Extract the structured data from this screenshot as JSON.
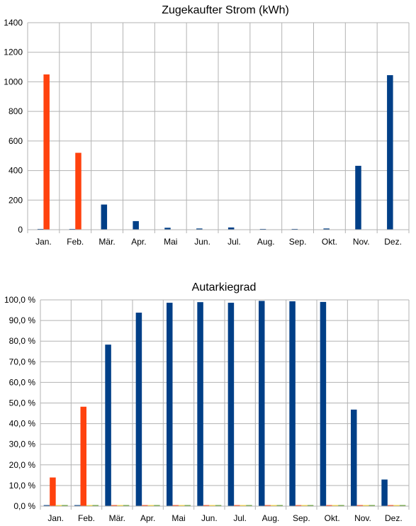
{
  "chart_data": [
    {
      "type": "bar",
      "title": "Zugekaufter Strom (kWh)",
      "categories": [
        "Jan.",
        "Feb.",
        "Mär.",
        "Apr.",
        "Mai",
        "Jun.",
        "Jul.",
        "Aug.",
        "Sep.",
        "Okt.",
        "Nov.",
        "Dez."
      ],
      "ylim": [
        0,
        1400
      ],
      "yticks": [
        0,
        200,
        400,
        600,
        800,
        1000,
        1200,
        1400
      ],
      "ytick_labels": [
        "0",
        "200",
        "400",
        "600",
        "800",
        "1000",
        "1200",
        "1400"
      ],
      "grid": true,
      "legend": "none",
      "series": [
        {
          "color": "#003F87",
          "values": [
            5,
            5,
            170,
            58,
            13,
            8,
            15,
            5,
            5,
            8,
            432,
            1045
          ]
        },
        {
          "color": "#FF420E",
          "values": [
            1050,
            520,
            0,
            0,
            0,
            0,
            0,
            0,
            0,
            0,
            0,
            0
          ]
        }
      ]
    },
    {
      "type": "bar",
      "title": "Autarkiegrad",
      "categories": [
        "Jan.",
        "Feb.",
        "Mär.",
        "Apr.",
        "Mai",
        "Jun.",
        "Jul.",
        "Aug.",
        "Sep.",
        "Okt.",
        "Nov.",
        "Dez."
      ],
      "ylim": [
        0,
        100
      ],
      "yticks": [
        0,
        10,
        20,
        30,
        40,
        50,
        60,
        70,
        80,
        90,
        100
      ],
      "ytick_labels": [
        "0,0 %",
        "10,0 %",
        "20,0 %",
        "30,0 %",
        "40,0 %",
        "50,0 %",
        "60,0 %",
        "70,0 %",
        "80,0 %",
        "90,0 %",
        "100,0 %"
      ],
      "grid": true,
      "legend": "none",
      "series": [
        {
          "color": "#003F87",
          "values": [
            0.5,
            0.5,
            78.3,
            93.8,
            98.6,
            98.9,
            98.6,
            99.5,
            99.3,
            99.0,
            46.8,
            12.9
          ]
        },
        {
          "color": "#FF420E",
          "values": [
            13.9,
            48.2,
            0.5,
            0.5,
            0.5,
            0.5,
            0.5,
            0.5,
            0.5,
            0.5,
            0.5,
            0.5
          ]
        },
        {
          "color": "#FFD320",
          "values": [
            0.5,
            0.5,
            0.5,
            0.5,
            0.5,
            0.5,
            0.5,
            0.5,
            0.5,
            0.5,
            0.5,
            0.5
          ]
        },
        {
          "color": "#579D1C",
          "values": [
            0.5,
            0.5,
            0.5,
            0.5,
            0.5,
            0.5,
            0.5,
            0.5,
            0.5,
            0.5,
            0.5,
            0.5
          ]
        }
      ]
    }
  ]
}
